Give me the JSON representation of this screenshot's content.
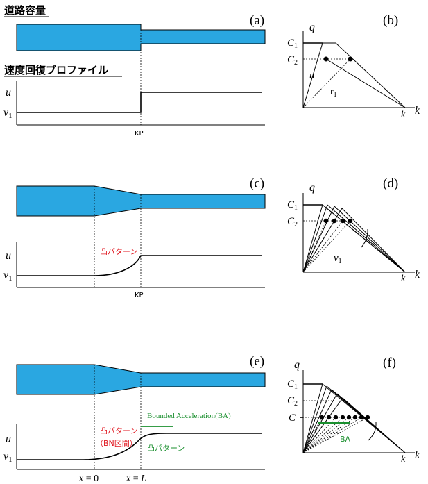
{
  "headings": {
    "road_capacity": "道路容量",
    "speed_profile": "速度回復プロファイル"
  },
  "panel_letters": {
    "a": "(a)",
    "b": "(b)",
    "c": "(c)",
    "d": "(d)",
    "e": "(e)",
    "f": "(f)"
  },
  "axis_labels": {
    "u": "u",
    "v1": "v",
    "v1_sub": "1",
    "q": "q",
    "k": "k"
  },
  "kp_label": "KP",
  "fd_labels": {
    "c1": "C",
    "c1_sub": "1",
    "c2": "C",
    "c2_sub": "2",
    "c_star": "C",
    "u": "u",
    "r1": "r",
    "r1_sub": "1",
    "v1": "v",
    "v1_sub": "1",
    "ba": "BA"
  },
  "annotations": {
    "convex_pattern": "凸パターン",
    "bn_section": "（BN区間）",
    "bounded_acceleration": "Bounded Acceleration(BA)",
    "convex_pattern_green": "凸パターン"
  },
  "x_labels": {
    "x0_var": "x",
    "x0_eq": " = 0",
    "xl_var": "x",
    "xl_eq": " = ",
    "xl_L": "L"
  },
  "colors": {
    "road": "#2aa7e1",
    "annotation_red": "#e0161f",
    "annotation_green": "#1a8f2e",
    "ink": "#000000"
  }
}
